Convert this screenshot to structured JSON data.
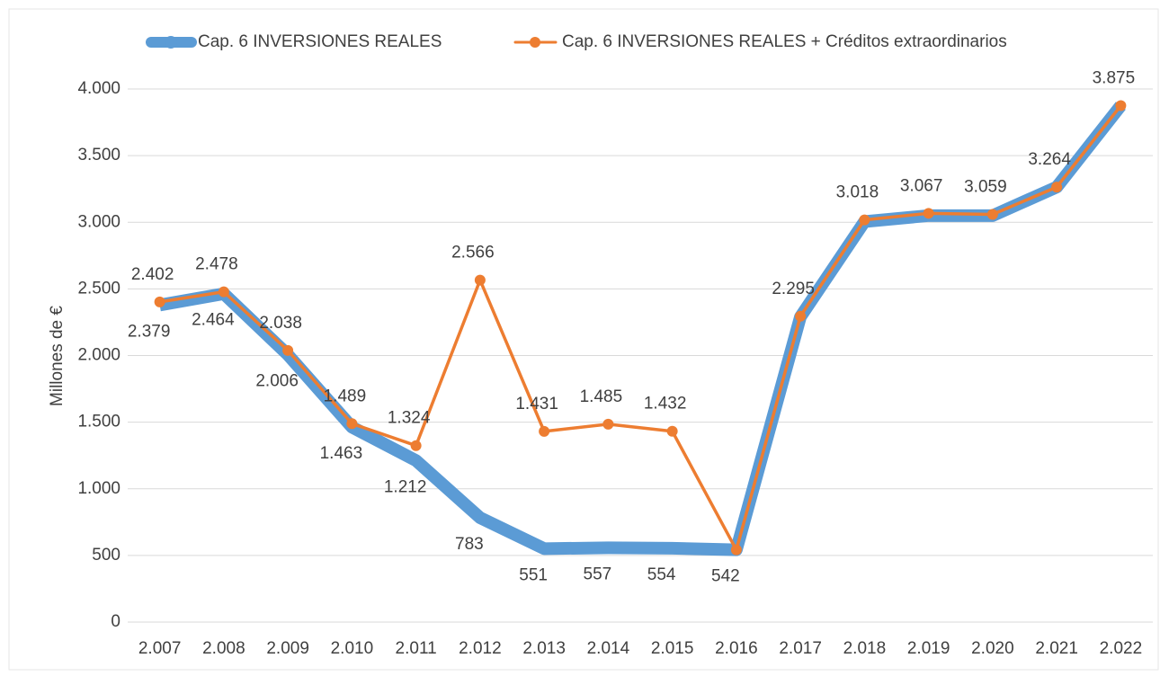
{
  "chart_data": {
    "type": "line",
    "y_label": "Millones de €",
    "categories": [
      "2.007",
      "2.008",
      "2.009",
      "2.010",
      "2.011",
      "2.012",
      "2.013",
      "2.014",
      "2.015",
      "2.016",
      "2.017",
      "2.018",
      "2.019",
      "2.020",
      "2.021",
      "2.022"
    ],
    "series": [
      {
        "name": "Cap. 6 INVERSIONES REALES",
        "color": "#5b9bd5",
        "values": [
          2379,
          2464,
          2006,
          1463,
          1212,
          783,
          551,
          557,
          554,
          542,
          2290,
          3005,
          3050,
          3050,
          3264,
          3875
        ],
        "value_labels": [
          "2.379",
          "2.464",
          "2.006",
          "1.463",
          "1.212",
          "783",
          "551",
          "557",
          "554",
          "542",
          null,
          null,
          null,
          null,
          null,
          null
        ]
      },
      {
        "name": "Cap. 6 INVERSIONES REALES + Créditos extraordinarios",
        "color": "#ed7d31",
        "values": [
          2402,
          2478,
          2038,
          1489,
          1324,
          2566,
          1431,
          1485,
          1432,
          542,
          2295,
          3018,
          3067,
          3059,
          3264,
          3875
        ],
        "value_labels": [
          "2.402",
          "2.478",
          "2.038",
          "1.489",
          "1.324",
          "2.566",
          "1.431",
          "1.485",
          "1.432",
          null,
          "2.295",
          "3.018",
          "3.067",
          "3.059",
          "3.264",
          "3.875"
        ]
      }
    ],
    "ylim": [
      0,
      4000
    ],
    "yticks": [
      0,
      500,
      {
        "value": 1000,
        "label": "1.000"
      },
      {
        "value": 1500,
        "label": "1.500"
      },
      {
        "value": 2000,
        "label": "2.000"
      },
      {
        "value": 2500,
        "label": "2.500"
      },
      {
        "value": 3000,
        "label": "3.000"
      },
      {
        "value": 3500,
        "label": "3.500"
      },
      {
        "value": 4000,
        "label": "4.000"
      }
    ],
    "grid": true,
    "legend": "top"
  }
}
